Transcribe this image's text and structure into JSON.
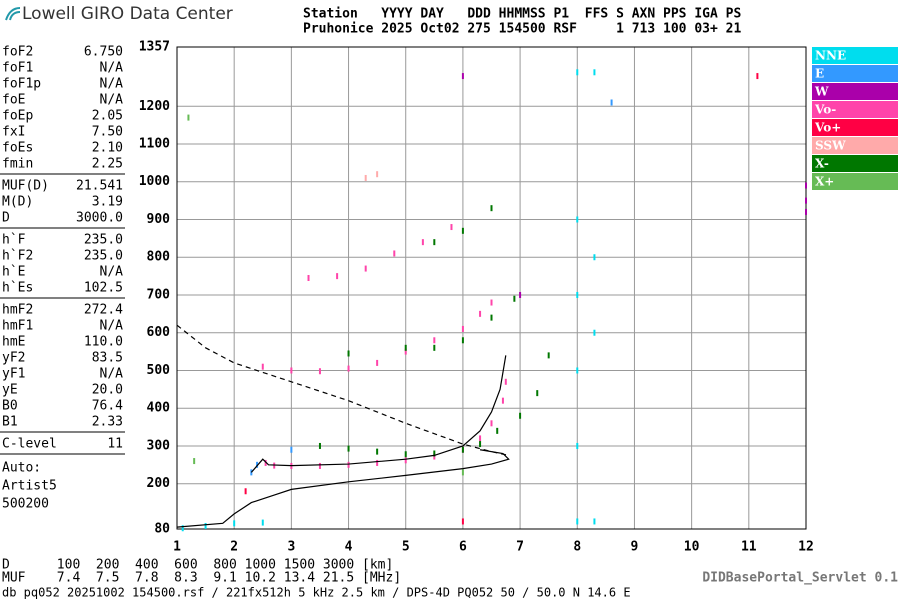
{
  "header": {
    "logo": "Lowell GIRO Data Center",
    "line1": "Station   YYYY DAY   DDD HHMMSS P1  FFS S AXN PPS IGA PS",
    "line2": "Pruhonice 2025 Oct02 275 154500 RSF     1 713 100 03+ 21"
  },
  "params": [
    [
      [
        "foF2",
        "6.750"
      ],
      [
        "foF1",
        "N/A"
      ],
      [
        "foF1p",
        "N/A"
      ],
      [
        "foE",
        "N/A"
      ],
      [
        "foEp",
        "2.05"
      ],
      [
        "fxI",
        "7.50"
      ],
      [
        "foEs",
        "2.10"
      ],
      [
        "fmin",
        "2.25"
      ]
    ],
    [
      [
        "MUF(D)",
        "21.541"
      ],
      [
        "M(D)",
        "3.19"
      ],
      [
        "D",
        "3000.0"
      ]
    ],
    [
      [
        "h`F",
        "235.0"
      ],
      [
        "h`F2",
        "235.0"
      ],
      [
        "h`E",
        "N/A"
      ],
      [
        "h`Es",
        "102.5"
      ]
    ],
    [
      [
        "hmF2",
        "272.4"
      ],
      [
        "hmF1",
        "N/A"
      ],
      [
        "hmE",
        "110.0"
      ],
      [
        "yF2",
        "83.5"
      ],
      [
        "yF1",
        "N/A"
      ],
      [
        "yE",
        "20.0"
      ],
      [
        "B0",
        "76.4"
      ],
      [
        "B1",
        "2.33"
      ]
    ],
    [
      [
        "C-level",
        "11"
      ]
    ]
  ],
  "auto": [
    "Auto:",
    "Artist5",
    "500200"
  ],
  "footer": {
    "d_line": "D      100  200  400  600  800 1000 1500 3000 [km]",
    "muf_line": "MUF    7.4  7.5  7.8  8.3  9.1 10.2 13.4 21.5 [MHz]",
    "db_line": "db pq052 20251002 154500.rsf / 221fx512h 5 kHz 2.5 km / DPS-4D PQ052 50 / 50.0 N 14.6 E",
    "servlet": "DIDBasePortal_Servlet 0.1"
  },
  "chart_data": {
    "type": "scatter",
    "xlim": [
      1,
      12
    ],
    "ylim": [
      80,
      1357
    ],
    "xticks": [
      1,
      2,
      3,
      4,
      5,
      6,
      7,
      8,
      9,
      10,
      11,
      12
    ],
    "yticks": [
      80,
      200,
      300,
      400,
      500,
      600,
      700,
      800,
      900,
      1000,
      1100,
      1200,
      1357
    ],
    "grid": true,
    "legend": "right",
    "series": [
      {
        "name": "NNE",
        "color": "#00ddee",
        "x": [
          8,
          8,
          8,
          8,
          8,
          8.3,
          8.3,
          8.3,
          8,
          8.3,
          1.1,
          1.5,
          2,
          2.5
        ],
        "values": [
          100,
          300,
          500,
          700,
          900,
          100,
          600,
          800,
          1290,
          1290,
          82,
          88,
          95,
          97
        ]
      },
      {
        "name": "E",
        "color": "#3399ff",
        "x": [
          2.3,
          2.4,
          3,
          8.6
        ],
        "values": [
          230,
          250,
          290,
          1210
        ]
      },
      {
        "name": "W",
        "color": "#aa00aa",
        "x": [
          6,
          7,
          12,
          12,
          12
        ],
        "values": [
          1280,
          700,
          950,
          990,
          920
        ]
      },
      {
        "name": "Vo-",
        "color": "#ff44aa",
        "x": [
          2.55,
          2.7,
          3,
          3.5,
          4,
          4.5,
          5,
          5.5,
          6,
          6.3,
          6.5,
          6.7,
          6.75,
          2.5,
          3,
          3.5,
          4,
          4.5,
          5,
          5.5,
          6,
          6.3,
          6.5,
          3.3,
          3.8,
          4.3,
          4.8,
          5.3,
          5.8
        ],
        "values": [
          255,
          248,
          247,
          247,
          250,
          255,
          262,
          272,
          290,
          320,
          360,
          420,
          470,
          510,
          500,
          498,
          505,
          520,
          550,
          580,
          610,
          650,
          680,
          745,
          750,
          770,
          810,
          840,
          880
        ]
      },
      {
        "name": "Vo+",
        "color": "#ff0044",
        "x": [
          11.15,
          2.2,
          6
        ],
        "values": [
          1280,
          180,
          100
        ]
      },
      {
        "name": "SSW",
        "color": "#ffaaaa",
        "x": [
          4.3,
          4.5
        ],
        "values": [
          1010,
          1020
        ]
      },
      {
        "name": "X-",
        "color": "#007700",
        "x": [
          3.5,
          4,
          4.5,
          5,
          5.5,
          6,
          6.3,
          6.6,
          7,
          7.3,
          7.5,
          4,
          5,
          5.5,
          6,
          6.5,
          6.9,
          5.5,
          6,
          6.5
        ],
        "values": [
          300,
          293,
          285,
          278,
          280,
          290,
          305,
          340,
          380,
          440,
          540,
          545,
          560,
          560,
          580,
          640,
          690,
          840,
          870,
          930
        ]
      },
      {
        "name": "X+",
        "color": "#66bb55",
        "x": [
          1.3,
          1.2,
          6
        ],
        "values": [
          260,
          1170,
          230
        ]
      }
    ],
    "lines": [
      {
        "color": "#000000",
        "dashed": false,
        "x": [
          2.3,
          2.5,
          2.6,
          3,
          4,
          5,
          5.5,
          6,
          6.3,
          6.5,
          6.65,
          6.75
        ],
        "values": [
          230,
          265,
          250,
          248,
          252,
          265,
          275,
          300,
          340,
          390,
          450,
          540
        ]
      },
      {
        "color": "#000000",
        "dashed": false,
        "x": [
          1,
          1.8,
          2,
          2.3,
          2.7,
          3,
          4,
          5,
          6,
          6.5,
          6.8,
          6.7,
          6.3
        ],
        "values": [
          85,
          95,
          120,
          150,
          170,
          185,
          205,
          222,
          240,
          252,
          265,
          280,
          290
        ]
      },
      {
        "color": "#000000",
        "dashed": true,
        "x": [
          1,
          1.5,
          2,
          3,
          4,
          5,
          6,
          6.5,
          6.8
        ],
        "values": [
          620,
          560,
          520,
          470,
          420,
          360,
          305,
          285,
          275
        ]
      }
    ]
  }
}
